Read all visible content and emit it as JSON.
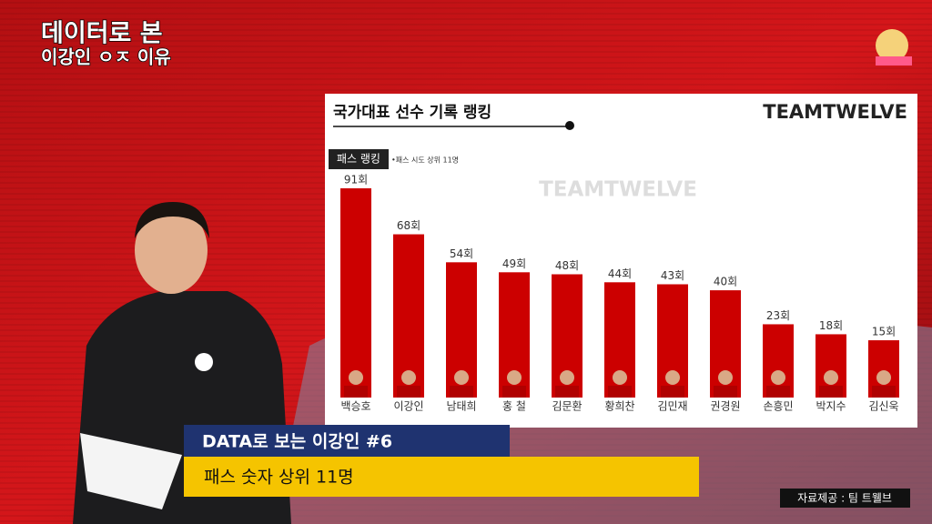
{
  "overlay": {
    "title_line1": "데이터로 본",
    "title_line2": "이강인 ㅇㅈ 이유"
  },
  "chart_data": {
    "type": "bar",
    "title": "국가대표 선수 기록 랭킹",
    "brand": "TEAMTWELVE",
    "badge": "패스 랭킹",
    "note": "•패스 시도 상위 11명",
    "watermark": "TEAMTWELVE",
    "categories": [
      "백승호",
      "이강인",
      "남태희",
      "홍 철",
      "김문환",
      "황희찬",
      "김민재",
      "권경원",
      "손흥민",
      "박지수",
      "김신욱"
    ],
    "values": [
      91,
      68,
      54,
      49,
      48,
      44,
      43,
      40,
      23,
      18,
      15
    ],
    "value_labels": [
      "91회",
      "68회",
      "54회",
      "49회",
      "48회",
      "44회",
      "43회",
      "40회",
      "23회",
      "18회",
      "15회"
    ],
    "color": "#cc0000"
  },
  "caption": {
    "subtitle": "DATA로 보는 이강인 #6",
    "headline": "패스 숫자 상위 11명",
    "source": "자료제공 : 팀 트웰브"
  }
}
